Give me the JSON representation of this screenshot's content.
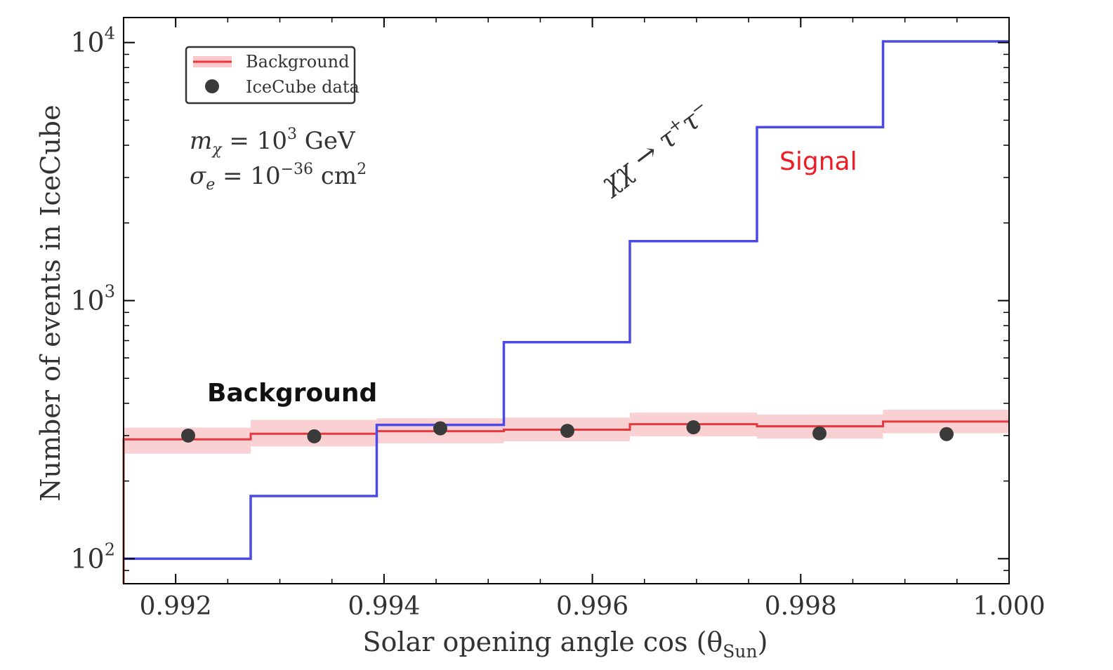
{
  "chart_data": {
    "type": "line",
    "title": "",
    "xlabel": "Solar opening angle cos (θ",
    "xlabel_sub": "Sun",
    "xlabel_close": ")",
    "ylabel": "Number of events in IceCube",
    "xlim": [
      0.9915,
      1.0
    ],
    "ylim": [
      80,
      12500
    ],
    "yscale": "log",
    "grid": false,
    "legend_position": "top-left",
    "x_ticks": [
      {
        "value": 0.992,
        "label": "0.992"
      },
      {
        "value": 0.994,
        "label": "0.994"
      },
      {
        "value": 0.996,
        "label": "0.996"
      },
      {
        "value": 0.998,
        "label": "0.998"
      },
      {
        "value": 1.0,
        "label": "1.000"
      }
    ],
    "y_ticks": [
      {
        "value": 100,
        "base": "10",
        "exp": "2"
      },
      {
        "value": 1000,
        "base": "10",
        "exp": "3"
      },
      {
        "value": 10000,
        "base": "10",
        "exp": "4"
      }
    ],
    "bin_edges": [
      0.9915,
      0.99272,
      0.99393,
      0.99515,
      0.99636,
      0.99758,
      0.99879,
      1.0
    ],
    "series": [
      {
        "kind": "step",
        "color": "#4a4ae6",
        "values": [
          100,
          175,
          330,
          690,
          1700,
          4700,
          10100
        ]
      },
      {
        "name": "Background",
        "kind": "step-band",
        "color": "#e8383d",
        "band_color": "#f9c9cb",
        "values": [
          290,
          305,
          312,
          316,
          332,
          326,
          340
        ],
        "band_low": [
          255,
          272,
          280,
          285,
          298,
          292,
          306
        ],
        "band_high": [
          322,
          345,
          350,
          352,
          368,
          362,
          378
        ]
      },
      {
        "name": "IceCube data",
        "kind": "points",
        "color": "#3a3a3a",
        "x": [
          0.99212,
          0.99333,
          0.99454,
          0.99576,
          0.99697,
          0.99818,
          0.9994
        ],
        "y": [
          300,
          298,
          320,
          313,
          323,
          306,
          304
        ]
      }
    ],
    "legend": [
      {
        "label": "Background"
      },
      {
        "label": "IceCube data"
      }
    ],
    "annotations": {
      "mass": {
        "sym": "m",
        "sub": "χ",
        "eq": " = 10",
        "exp": "3",
        "unit": " GeV"
      },
      "sigma": {
        "sym": "σ",
        "sub": "e",
        "eq": " = 10",
        "exp": "−36",
        "unit": " cm",
        "unit_exp": "2"
      },
      "channel": {
        "main": "χχ → τ",
        "sup1": "+",
        "mid": "τ",
        "sup2": "−"
      },
      "signal_label": "Signal",
      "background_label": "Background"
    }
  }
}
